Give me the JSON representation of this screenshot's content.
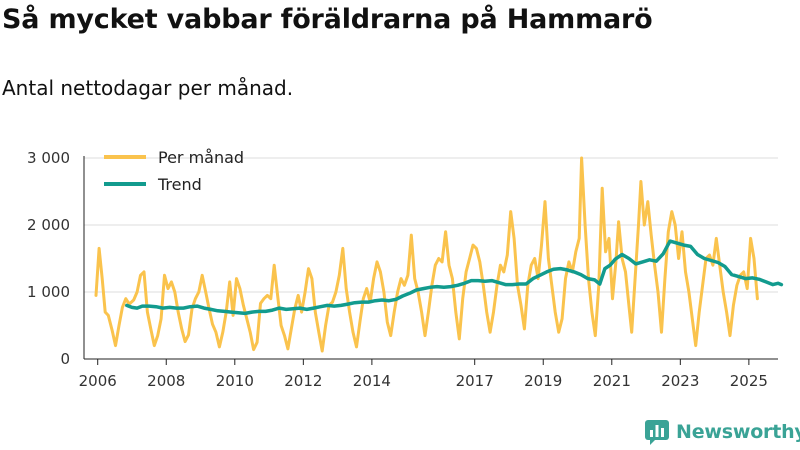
{
  "title": "Så mycket vabbar föräldrarna på Hammarö",
  "subtitle": "Antal nettodagar per månad.",
  "brand": "Newsworthy",
  "colors": {
    "monthly": "#fac34d",
    "trend": "#129b8e",
    "grid": "#dddddd",
    "axis": "#222222",
    "brand": "#3aa396"
  },
  "chart_data": {
    "type": "line",
    "title": "Så mycket vabbar föräldrarna på Hammarö",
    "subtitle": "Antal nettodagar per månad.",
    "xlabel": "",
    "ylabel": "",
    "ylim": [
      0,
      3000
    ],
    "xlim": [
      2005.6,
      2025.85
    ],
    "yticks": [
      0,
      1000,
      2000,
      3000
    ],
    "ytick_labels": [
      "0",
      "1 000",
      "2 000",
      "3 000"
    ],
    "xticks": [
      2006,
      2008,
      2010,
      2012,
      2014,
      2017,
      2019,
      2021,
      2023,
      2025
    ],
    "xtick_labels": [
      "2006",
      "2008",
      "2010",
      "2012",
      "2014",
      "2017",
      "2019",
      "2021",
      "2023",
      "2025"
    ],
    "legend": {
      "placement": "top-left",
      "entries": [
        "Per månad",
        "Trend"
      ]
    },
    "series": [
      {
        "name": "Per månad",
        "color": "#fac34d",
        "points": [
          [
            2005.95,
            950
          ],
          [
            2006.04,
            1650
          ],
          [
            2006.13,
            1200
          ],
          [
            2006.22,
            700
          ],
          [
            2006.31,
            650
          ],
          [
            2006.42,
            430
          ],
          [
            2006.52,
            200
          ],
          [
            2006.62,
            500
          ],
          [
            2006.72,
            770
          ],
          [
            2006.82,
            900
          ],
          [
            2006.92,
            820
          ],
          [
            2007.05,
            880
          ],
          [
            2007.15,
            1000
          ],
          [
            2007.25,
            1250
          ],
          [
            2007.35,
            1300
          ],
          [
            2007.45,
            700
          ],
          [
            2007.55,
            450
          ],
          [
            2007.65,
            200
          ],
          [
            2007.75,
            350
          ],
          [
            2007.85,
            600
          ],
          [
            2007.95,
            1250
          ],
          [
            2008.05,
            1050
          ],
          [
            2008.15,
            1150
          ],
          [
            2008.25,
            1000
          ],
          [
            2008.35,
            700
          ],
          [
            2008.45,
            450
          ],
          [
            2008.55,
            260
          ],
          [
            2008.65,
            360
          ],
          [
            2008.75,
            750
          ],
          [
            2008.85,
            900
          ],
          [
            2008.95,
            1000
          ],
          [
            2009.05,
            1250
          ],
          [
            2009.15,
            1000
          ],
          [
            2009.25,
            750
          ],
          [
            2009.35,
            520
          ],
          [
            2009.45,
            400
          ],
          [
            2009.55,
            180
          ],
          [
            2009.65,
            400
          ],
          [
            2009.75,
            700
          ],
          [
            2009.85,
            1150
          ],
          [
            2009.95,
            650
          ],
          [
            2010.05,
            1200
          ],
          [
            2010.15,
            1050
          ],
          [
            2010.25,
            800
          ],
          [
            2010.35,
            600
          ],
          [
            2010.45,
            400
          ],
          [
            2010.55,
            140
          ],
          [
            2010.65,
            250
          ],
          [
            2010.75,
            830
          ],
          [
            2010.85,
            900
          ],
          [
            2010.95,
            950
          ],
          [
            2011.05,
            900
          ],
          [
            2011.15,
            1400
          ],
          [
            2011.25,
            950
          ],
          [
            2011.35,
            500
          ],
          [
            2011.45,
            350
          ],
          [
            2011.55,
            150
          ],
          [
            2011.65,
            450
          ],
          [
            2011.75,
            750
          ],
          [
            2011.85,
            950
          ],
          [
            2011.95,
            700
          ],
          [
            2012.05,
            1000
          ],
          [
            2012.15,
            1350
          ],
          [
            2012.25,
            1200
          ],
          [
            2012.35,
            700
          ],
          [
            2012.45,
            400
          ],
          [
            2012.55,
            120
          ],
          [
            2012.65,
            500
          ],
          [
            2012.75,
            800
          ],
          [
            2012.85,
            850
          ],
          [
            2012.95,
            1000
          ],
          [
            2013.05,
            1250
          ],
          [
            2013.15,
            1650
          ],
          [
            2013.25,
            1050
          ],
          [
            2013.35,
            700
          ],
          [
            2013.45,
            400
          ],
          [
            2013.55,
            180
          ],
          [
            2013.65,
            550
          ],
          [
            2013.75,
            900
          ],
          [
            2013.85,
            1050
          ],
          [
            2013.95,
            850
          ],
          [
            2014.05,
            1200
          ],
          [
            2014.15,
            1450
          ],
          [
            2014.25,
            1300
          ],
          [
            2014.35,
            1000
          ],
          [
            2014.45,
            550
          ],
          [
            2014.55,
            350
          ],
          [
            2014.65,
            700
          ],
          [
            2014.75,
            1000
          ],
          [
            2014.85,
            1200
          ],
          [
            2014.95,
            1100
          ],
          [
            2015.05,
            1250
          ],
          [
            2015.15,
            1850
          ],
          [
            2015.25,
            1200
          ],
          [
            2015.35,
            1000
          ],
          [
            2015.45,
            700
          ],
          [
            2015.55,
            350
          ],
          [
            2015.65,
            700
          ],
          [
            2015.75,
            1100
          ],
          [
            2015.85,
            1400
          ],
          [
            2015.95,
            1500
          ],
          [
            2016.05,
            1450
          ],
          [
            2016.15,
            1900
          ],
          [
            2016.25,
            1400
          ],
          [
            2016.35,
            1200
          ],
          [
            2016.45,
            700
          ],
          [
            2016.55,
            300
          ],
          [
            2016.65,
            900
          ],
          [
            2016.75,
            1300
          ],
          [
            2016.85,
            1500
          ],
          [
            2016.95,
            1700
          ],
          [
            2017.05,
            1650
          ],
          [
            2017.15,
            1450
          ],
          [
            2017.25,
            1100
          ],
          [
            2017.35,
            700
          ],
          [
            2017.45,
            400
          ],
          [
            2017.55,
            700
          ],
          [
            2017.65,
            1100
          ],
          [
            2017.75,
            1400
          ],
          [
            2017.85,
            1300
          ],
          [
            2017.95,
            1550
          ],
          [
            2018.05,
            2200
          ],
          [
            2018.15,
            1800
          ],
          [
            2018.25,
            1100
          ],
          [
            2018.35,
            800
          ],
          [
            2018.45,
            450
          ],
          [
            2018.55,
            1100
          ],
          [
            2018.65,
            1400
          ],
          [
            2018.75,
            1500
          ],
          [
            2018.85,
            1200
          ],
          [
            2018.95,
            1700
          ],
          [
            2019.05,
            2350
          ],
          [
            2019.15,
            1500
          ],
          [
            2019.25,
            1100
          ],
          [
            2019.35,
            700
          ],
          [
            2019.45,
            400
          ],
          [
            2019.55,
            600
          ],
          [
            2019.65,
            1200
          ],
          [
            2019.75,
            1450
          ],
          [
            2019.85,
            1300
          ],
          [
            2019.95,
            1600
          ],
          [
            2020.05,
            1800
          ],
          [
            2020.12,
            3000
          ],
          [
            2020.22,
            2000
          ],
          [
            2020.32,
            1200
          ],
          [
            2020.42,
            700
          ],
          [
            2020.52,
            350
          ],
          [
            2020.62,
            1100
          ],
          [
            2020.72,
            2550
          ],
          [
            2020.82,
            1600
          ],
          [
            2020.92,
            1800
          ],
          [
            2021.02,
            900
          ],
          [
            2021.12,
            1450
          ],
          [
            2021.2,
            2050
          ],
          [
            2021.3,
            1500
          ],
          [
            2021.4,
            1300
          ],
          [
            2021.5,
            800
          ],
          [
            2021.58,
            400
          ],
          [
            2021.68,
            1200
          ],
          [
            2021.78,
            2000
          ],
          [
            2021.85,
            2650
          ],
          [
            2021.95,
            2000
          ],
          [
            2022.05,
            2350
          ],
          [
            2022.15,
            1850
          ],
          [
            2022.25,
            1400
          ],
          [
            2022.35,
            1000
          ],
          [
            2022.45,
            400
          ],
          [
            2022.55,
            1200
          ],
          [
            2022.65,
            1900
          ],
          [
            2022.75,
            2200
          ],
          [
            2022.85,
            2000
          ],
          [
            2022.95,
            1500
          ],
          [
            2023.05,
            1900
          ],
          [
            2023.15,
            1300
          ],
          [
            2023.25,
            1000
          ],
          [
            2023.35,
            600
          ],
          [
            2023.45,
            200
          ],
          [
            2023.55,
            700
          ],
          [
            2023.65,
            1100
          ],
          [
            2023.75,
            1500
          ],
          [
            2023.85,
            1550
          ],
          [
            2023.95,
            1400
          ],
          [
            2024.05,
            1800
          ],
          [
            2024.15,
            1400
          ],
          [
            2024.25,
            1000
          ],
          [
            2024.35,
            700
          ],
          [
            2024.45,
            350
          ],
          [
            2024.55,
            800
          ],
          [
            2024.65,
            1100
          ],
          [
            2024.75,
            1250
          ],
          [
            2024.85,
            1300
          ],
          [
            2024.95,
            1050
          ],
          [
            2025.05,
            1800
          ],
          [
            2025.15,
            1500
          ],
          [
            2025.25,
            900
          ]
        ]
      },
      {
        "name": "Trend",
        "color": "#129b8e",
        "points": [
          [
            2006.85,
            800
          ],
          [
            2007.0,
            770
          ],
          [
            2007.15,
            760
          ],
          [
            2007.3,
            790
          ],
          [
            2007.5,
            790
          ],
          [
            2007.7,
            780
          ],
          [
            2007.9,
            760
          ],
          [
            2008.1,
            770
          ],
          [
            2008.3,
            760
          ],
          [
            2008.5,
            760
          ],
          [
            2008.7,
            780
          ],
          [
            2008.9,
            790
          ],
          [
            2009.1,
            760
          ],
          [
            2009.3,
            740
          ],
          [
            2009.5,
            720
          ],
          [
            2009.7,
            710
          ],
          [
            2009.9,
            700
          ],
          [
            2010.1,
            690
          ],
          [
            2010.3,
            680
          ],
          [
            2010.5,
            700
          ],
          [
            2010.7,
            710
          ],
          [
            2010.9,
            710
          ],
          [
            2011.1,
            730
          ],
          [
            2011.3,
            760
          ],
          [
            2011.5,
            740
          ],
          [
            2011.7,
            750
          ],
          [
            2011.9,
            760
          ],
          [
            2012.1,
            740
          ],
          [
            2012.3,
            760
          ],
          [
            2012.5,
            780
          ],
          [
            2012.7,
            800
          ],
          [
            2012.9,
            790
          ],
          [
            2013.1,
            800
          ],
          [
            2013.3,
            820
          ],
          [
            2013.5,
            840
          ],
          [
            2013.7,
            850
          ],
          [
            2013.9,
            850
          ],
          [
            2014.1,
            870
          ],
          [
            2014.3,
            880
          ],
          [
            2014.5,
            870
          ],
          [
            2014.7,
            890
          ],
          [
            2014.9,
            940
          ],
          [
            2015.1,
            980
          ],
          [
            2015.3,
            1030
          ],
          [
            2015.5,
            1050
          ],
          [
            2015.7,
            1070
          ],
          [
            2015.9,
            1080
          ],
          [
            2016.1,
            1070
          ],
          [
            2016.3,
            1080
          ],
          [
            2016.5,
            1100
          ],
          [
            2016.7,
            1130
          ],
          [
            2016.9,
            1170
          ],
          [
            2017.1,
            1170
          ],
          [
            2017.3,
            1160
          ],
          [
            2017.5,
            1170
          ],
          [
            2017.7,
            1140
          ],
          [
            2017.9,
            1110
          ],
          [
            2018.1,
            1110
          ],
          [
            2018.3,
            1120
          ],
          [
            2018.5,
            1120
          ],
          [
            2018.7,
            1200
          ],
          [
            2018.9,
            1250
          ],
          [
            2019.1,
            1300
          ],
          [
            2019.3,
            1340
          ],
          [
            2019.5,
            1350
          ],
          [
            2019.7,
            1330
          ],
          [
            2019.9,
            1300
          ],
          [
            2020.1,
            1260
          ],
          [
            2020.3,
            1200
          ],
          [
            2020.5,
            1180
          ],
          [
            2020.65,
            1120
          ],
          [
            2020.8,
            1350
          ],
          [
            2020.95,
            1400
          ],
          [
            2021.1,
            1490
          ],
          [
            2021.3,
            1560
          ],
          [
            2021.5,
            1500
          ],
          [
            2021.7,
            1420
          ],
          [
            2021.9,
            1450
          ],
          [
            2022.1,
            1480
          ],
          [
            2022.3,
            1460
          ],
          [
            2022.5,
            1570
          ],
          [
            2022.7,
            1760
          ],
          [
            2022.9,
            1730
          ],
          [
            2023.1,
            1700
          ],
          [
            2023.3,
            1680
          ],
          [
            2023.5,
            1560
          ],
          [
            2023.7,
            1500
          ],
          [
            2023.9,
            1470
          ],
          [
            2024.1,
            1440
          ],
          [
            2024.3,
            1380
          ],
          [
            2024.5,
            1260
          ],
          [
            2024.7,
            1230
          ],
          [
            2024.9,
            1200
          ],
          [
            2025.1,
            1210
          ],
          [
            2025.3,
            1190
          ],
          [
            2025.5,
            1150
          ],
          [
            2025.7,
            1110
          ],
          [
            2025.85,
            1130
          ],
          [
            2025.95,
            1110
          ]
        ]
      }
    ]
  }
}
